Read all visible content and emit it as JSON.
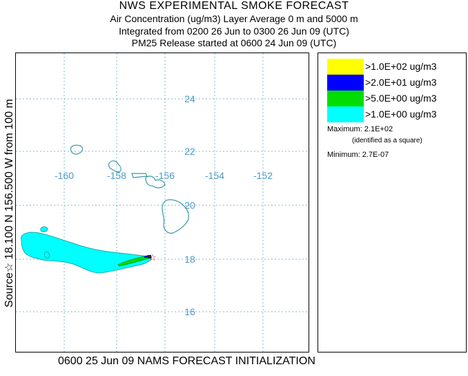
{
  "header": {
    "title": "NWS EXPERIMENTAL SMOKE FORECAST",
    "line1": "Air Concentration (ug/m3) Layer Average    0 m and  5000 m",
    "line2": "Integrated from 0200 26 Jun to 0300 26 Jun 09 (UTC)",
    "line3": "PM25 Release started at 0600 24 Jun 09 (UTC)"
  },
  "side_title": "Source☆ 18.100  N 156.500  W     from  100 m",
  "footer": "0600 25 Jun 09 NAMS FORECAST INITIALIZATION",
  "map": {
    "lon_labels": [
      "-160",
      "-158",
      "-156",
      "-154",
      "-152"
    ],
    "lat_labels": [
      "24",
      "22",
      "20",
      "18",
      "16"
    ],
    "grid_color": "#7fb8d8",
    "label_color": "#4a9ac8",
    "coast_color": "#3a9aa8",
    "source_marker": "☆"
  },
  "legend": {
    "items": [
      {
        "label": ">1.0E+02 ug/m3",
        "color": "#ffff00"
      },
      {
        "label": ">2.0E+01 ug/m3",
        "color": "#0000ff"
      },
      {
        "label": ">5.0E+00 ug/m3",
        "color": "#00dd00"
      },
      {
        "label": ">1.0E+00 ug/m3",
        "color": "#00ffff"
      }
    ],
    "maximum": "Maximum: 2.1E+02",
    "maximum_note": "(identified as a square)",
    "minimum": "Minimum: 2.7E-07"
  }
}
